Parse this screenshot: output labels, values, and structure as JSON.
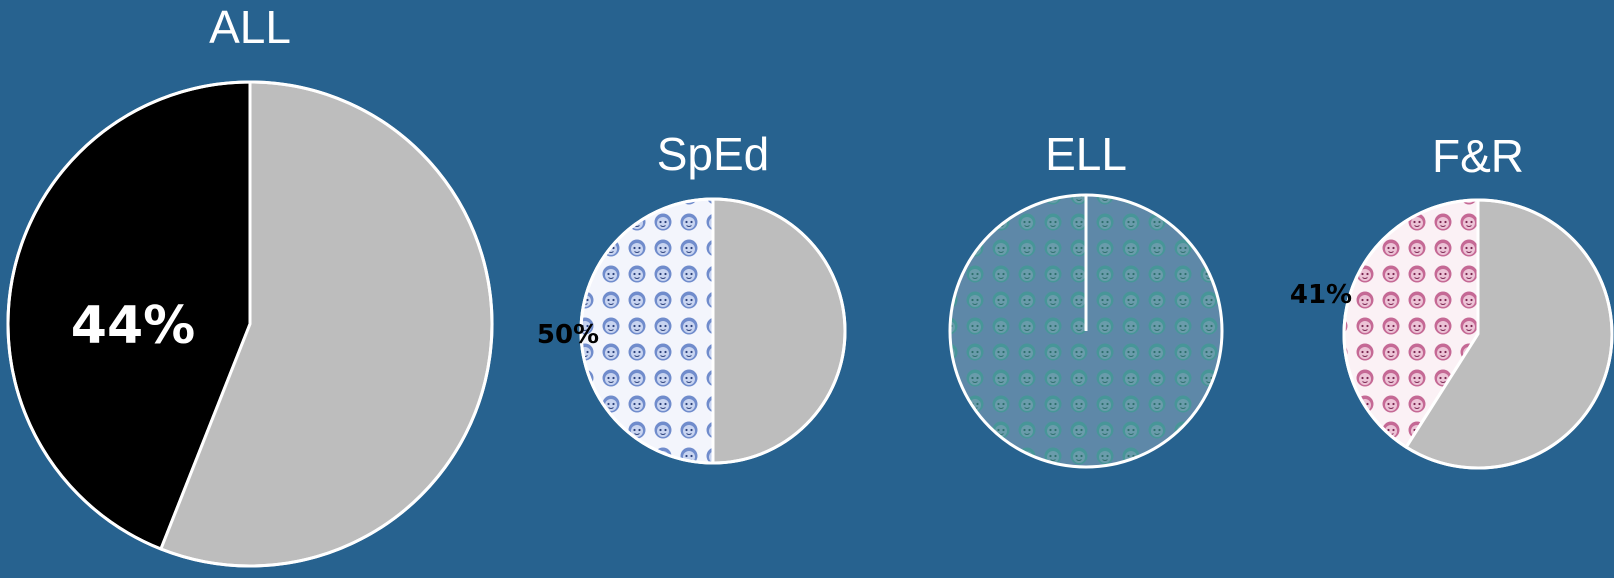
{
  "chart_data": [
    {
      "type": "pie",
      "title": "ALL",
      "slices": [
        {
          "value": 44,
          "label": "44%",
          "color": "#000000",
          "fill": "solid"
        },
        {
          "value": 56,
          "label": "",
          "color": "#bdbdbd",
          "fill": "solid"
        }
      ]
    },
    {
      "type": "pie",
      "title": "SpEd",
      "slices": [
        {
          "value": 50,
          "label": "50%",
          "color": "#3a5fb0",
          "fill": "faces-pattern"
        },
        {
          "value": 50,
          "label": "",
          "color": "#bdbdbd",
          "fill": "solid"
        }
      ]
    },
    {
      "type": "pie",
      "title": "ELL",
      "slices": [
        {
          "value": 100,
          "label": "",
          "color": "#3f9a93",
          "fill": "faces-pattern"
        }
      ]
    },
    {
      "type": "pie",
      "title": "F&R",
      "slices": [
        {
          "value": 41,
          "label": "41%",
          "color": "#b8477d",
          "fill": "faces-pattern"
        },
        {
          "value": 59,
          "label": "",
          "color": "#bdbdbd",
          "fill": "solid"
        }
      ]
    }
  ],
  "colors": {
    "background": "#27628f",
    "outline": "#ffffff",
    "remainder": "#bdbdbd"
  }
}
